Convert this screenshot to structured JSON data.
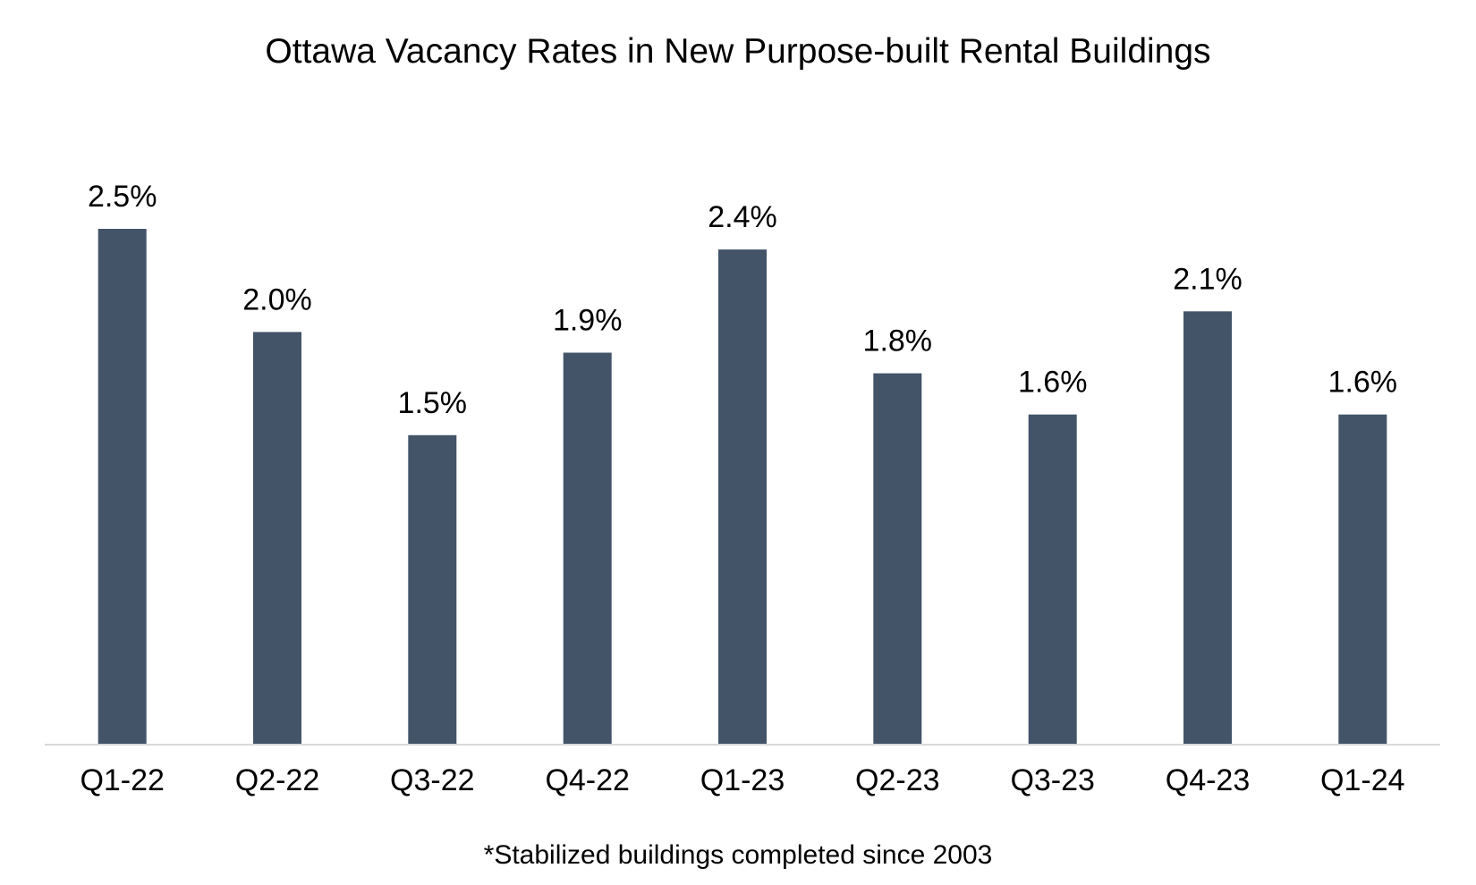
{
  "chart_data": {
    "type": "bar",
    "title": "Ottawa Vacancy Rates in New Purpose-built Rental Buildings",
    "footnote": "*Stabilized buildings completed since 2003",
    "categories": [
      "Q1-22",
      "Q2-22",
      "Q3-22",
      "Q4-22",
      "Q1-23",
      "Q2-23",
      "Q3-23",
      "Q4-23",
      "Q1-24"
    ],
    "values": [
      2.5,
      2.0,
      1.5,
      1.9,
      2.4,
      1.8,
      1.6,
      2.1,
      1.6
    ],
    "data_labels": [
      "2.5%",
      "2.0%",
      "1.5%",
      "1.9%",
      "2.4%",
      "1.8%",
      "1.6%",
      "2.1%",
      "1.6%"
    ],
    "ylim": [
      0,
      2.5
    ],
    "grid": false,
    "legend": "none",
    "colors": {
      "bar": "#435469",
      "axis": "#d9d9d9",
      "text": "#000000"
    }
  }
}
